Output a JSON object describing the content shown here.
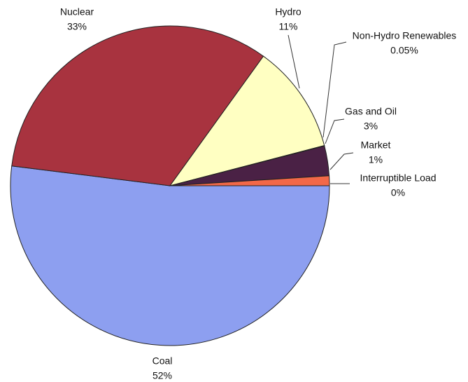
{
  "chart_data": {
    "type": "pie",
    "categories": [
      "Coal",
      "Nuclear",
      "Hydro",
      "Non-Hydro Renewables",
      "Gas and Oil",
      "Market",
      "Interruptible Load"
    ],
    "values": [
      52,
      33,
      11,
      0.05,
      3,
      1,
      0
    ],
    "value_labels": [
      "52%",
      "33%",
      "11%",
      "0.05%",
      "3%",
      "1%",
      "0%"
    ],
    "colors": [
      "#8d9ff0",
      "#a8333f",
      "#ffffc2",
      "#d8e8d0",
      "#4a2145",
      "#f26848",
      "#ffffff"
    ]
  }
}
